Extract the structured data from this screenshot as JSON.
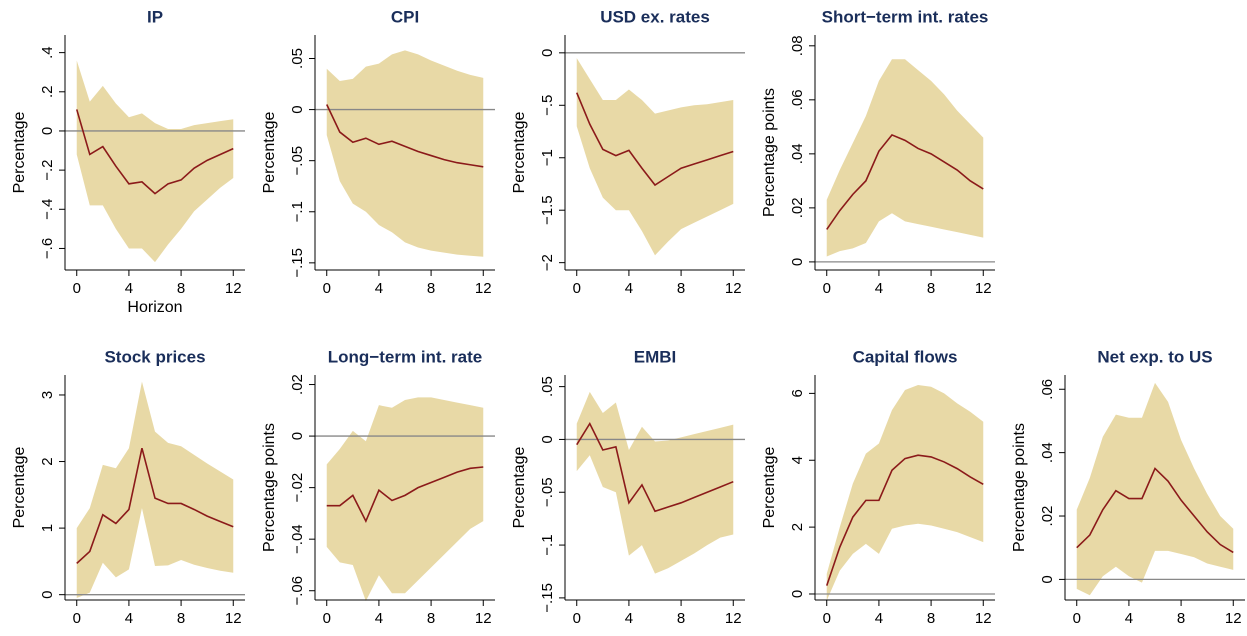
{
  "chart_data": [
    {
      "type": "line",
      "title": "IP",
      "ylabel": "Percentage",
      "xlabel": "Horizon",
      "x": [
        0,
        1,
        2,
        3,
        4,
        5,
        6,
        7,
        8,
        9,
        10,
        11,
        12
      ],
      "values": [
        0.11,
        -0.12,
        -0.08,
        -0.18,
        -0.27,
        -0.26,
        -0.32,
        -0.27,
        -0.25,
        -0.19,
        -0.15,
        -0.12,
        -0.09
      ],
      "upper": [
        0.36,
        0.15,
        0.23,
        0.14,
        0.07,
        0.09,
        0.04,
        0.01,
        0.01,
        0.03,
        0.04,
        0.05,
        0.06
      ],
      "lower": [
        -0.12,
        -0.38,
        -0.38,
        -0.5,
        -0.6,
        -0.6,
        -0.67,
        -0.58,
        -0.5,
        -0.41,
        -0.35,
        -0.29,
        -0.24
      ],
      "color": "#8b1a1a",
      "band_color": "#e8d9a6",
      "refline": 0,
      "refline_color": "#888888",
      "xlim": [
        -0.9,
        12.9
      ],
      "xticks": [
        0,
        4,
        8,
        12
      ],
      "ylim": [
        -0.71,
        0.49
      ],
      "yticks": [
        {
          "value": 0.4,
          "label": ".4"
        },
        {
          "value": 0.2,
          "label": ".2"
        },
        0,
        {
          "value": -0.2,
          "label": "−.2"
        },
        {
          "value": -0.4,
          "label": "−.4"
        },
        {
          "value": -0.6,
          "label": "−.6"
        }
      ]
    },
    {
      "type": "line",
      "title": "CPI",
      "ylabel": "Percentage",
      "x": [
        0,
        1,
        2,
        3,
        4,
        5,
        6,
        7,
        8,
        9,
        10,
        11,
        12
      ],
      "values": [
        0.005,
        -0.022,
        -0.032,
        -0.028,
        -0.034,
        -0.031,
        -0.036,
        -0.041,
        -0.045,
        -0.049,
        -0.052,
        -0.054,
        -0.056
      ],
      "upper": [
        0.04,
        0.028,
        0.03,
        0.042,
        0.045,
        0.054,
        0.058,
        0.054,
        0.048,
        0.043,
        0.038,
        0.034,
        0.031
      ],
      "lower": [
        -0.025,
        -0.07,
        -0.092,
        -0.1,
        -0.113,
        -0.12,
        -0.13,
        -0.135,
        -0.138,
        -0.14,
        -0.142,
        -0.143,
        -0.144
      ],
      "color": "#8b1a1a",
      "band_color": "#e8d9a6",
      "refline": 0,
      "refline_color": "#888888",
      "xlim": [
        -0.9,
        12.9
      ],
      "xticks": [
        0,
        4,
        8,
        12
      ],
      "ylim": [
        -0.157,
        0.073
      ],
      "yticks": [
        {
          "value": 0.05,
          "label": ".05"
        },
        0,
        {
          "value": -0.05,
          "label": "−.05"
        },
        {
          "value": -0.1,
          "label": "−.1"
        },
        {
          "value": -0.15,
          "label": "−.15"
        }
      ]
    },
    {
      "type": "line",
      "title": "USD ex. rates",
      "ylabel": "Percentage",
      "x": [
        0,
        1,
        2,
        3,
        4,
        5,
        6,
        7,
        8,
        9,
        10,
        11,
        12
      ],
      "values": [
        -0.38,
        -0.68,
        -0.92,
        -0.98,
        -0.93,
        -1.1,
        -1.26,
        -1.18,
        -1.1,
        -1.06,
        -1.02,
        -0.98,
        -0.94
      ],
      "upper": [
        -0.05,
        -0.25,
        -0.45,
        -0.45,
        -0.35,
        -0.45,
        -0.58,
        -0.55,
        -0.52,
        -0.5,
        -0.49,
        -0.47,
        -0.45
      ],
      "lower": [
        -0.7,
        -1.1,
        -1.38,
        -1.5,
        -1.5,
        -1.7,
        -1.93,
        -1.8,
        -1.68,
        -1.62,
        -1.56,
        -1.5,
        -1.44
      ],
      "color": "#8b1a1a",
      "band_color": "#e8d9a6",
      "refline": 0,
      "refline_color": "#888888",
      "xlim": [
        -0.9,
        12.9
      ],
      "xticks": [
        0,
        4,
        8,
        12
      ],
      "ylim": [
        -2.07,
        0.17
      ],
      "yticks": [
        0,
        {
          "value": -0.5,
          "label": "−.5"
        },
        {
          "value": -1,
          "label": "−1"
        },
        {
          "value": -1.5,
          "label": "−1.5"
        },
        {
          "value": -2,
          "label": "−2"
        }
      ]
    },
    {
      "type": "line",
      "title": "Short−term int. rates",
      "ylabel": "Percentage points",
      "x": [
        0,
        1,
        2,
        3,
        4,
        5,
        6,
        7,
        8,
        9,
        10,
        11,
        12
      ],
      "values": [
        0.012,
        0.019,
        0.025,
        0.03,
        0.041,
        0.047,
        0.045,
        0.042,
        0.04,
        0.037,
        0.034,
        0.03,
        0.027
      ],
      "upper": [
        0.023,
        0.034,
        0.044,
        0.054,
        0.067,
        0.075,
        0.075,
        0.071,
        0.067,
        0.062,
        0.056,
        0.051,
        0.046
      ],
      "lower": [
        0.002,
        0.004,
        0.005,
        0.007,
        0.015,
        0.018,
        0.015,
        0.014,
        0.013,
        0.012,
        0.011,
        0.01,
        0.009
      ],
      "color": "#8b1a1a",
      "band_color": "#e8d9a6",
      "refline": 0,
      "refline_color": "#888888",
      "xlim": [
        -0.9,
        12.9
      ],
      "xticks": [
        0,
        4,
        8,
        12
      ],
      "ylim": [
        -0.003,
        0.084
      ],
      "yticks": [
        0,
        {
          "value": 0.02,
          "label": ".02"
        },
        {
          "value": 0.04,
          "label": ".04"
        },
        {
          "value": 0.06,
          "label": ".06"
        },
        {
          "value": 0.08,
          "label": ".08"
        }
      ]
    },
    {
      "type": "line",
      "title": "Stock prices",
      "ylabel": "Percentage",
      "x": [
        0,
        1,
        2,
        3,
        4,
        5,
        6,
        7,
        8,
        9,
        10,
        11,
        12
      ],
      "values": [
        0.47,
        0.65,
        1.2,
        1.07,
        1.28,
        2.2,
        1.45,
        1.37,
        1.37,
        1.28,
        1.18,
        1.1,
        1.02
      ],
      "upper": [
        1.0,
        1.3,
        1.95,
        1.9,
        2.2,
        3.2,
        2.45,
        2.28,
        2.23,
        2.1,
        1.97,
        1.85,
        1.73
      ],
      "lower": [
        -0.05,
        0.03,
        0.48,
        0.26,
        0.38,
        1.3,
        0.43,
        0.44,
        0.52,
        0.45,
        0.4,
        0.36,
        0.33
      ],
      "color": "#8b1a1a",
      "band_color": "#e8d9a6",
      "refline": 0,
      "refline_color": "#888888",
      "xlim": [
        -0.9,
        12.9
      ],
      "xticks": [
        0,
        4,
        8,
        12
      ],
      "ylim": [
        -0.08,
        3.3
      ],
      "yticks": [
        0,
        1,
        2,
        3
      ]
    },
    {
      "type": "line",
      "title": "Long−term int. rate",
      "ylabel": "Percentage points",
      "x": [
        0,
        1,
        2,
        3,
        4,
        5,
        6,
        7,
        8,
        9,
        10,
        11,
        12
      ],
      "values": [
        -0.027,
        -0.027,
        -0.023,
        -0.033,
        -0.021,
        -0.025,
        -0.023,
        -0.02,
        -0.018,
        -0.016,
        -0.014,
        -0.0125,
        -0.012
      ],
      "upper": [
        -0.011,
        -0.005,
        0.002,
        -0.002,
        0.012,
        0.011,
        0.014,
        0.015,
        0.015,
        0.014,
        0.013,
        0.012,
        0.011
      ],
      "lower": [
        -0.043,
        -0.049,
        -0.05,
        -0.064,
        -0.054,
        -0.061,
        -0.061,
        -0.056,
        -0.051,
        -0.046,
        -0.041,
        -0.036,
        -0.033
      ],
      "color": "#8b1a1a",
      "band_color": "#e8d9a6",
      "refline": 0,
      "refline_color": "#888888",
      "xlim": [
        -0.9,
        12.9
      ],
      "xticks": [
        0,
        4,
        8,
        12
      ],
      "ylim": [
        -0.0636,
        0.0237
      ],
      "yticks": [
        {
          "value": 0.02,
          "label": ".02"
        },
        0,
        {
          "value": -0.02,
          "label": "−.02"
        },
        {
          "value": -0.04,
          "label": "−.04"
        },
        {
          "value": -0.06,
          "label": "−.06"
        }
      ]
    },
    {
      "type": "line",
      "title": "EMBI",
      "ylabel": "Percentage",
      "x": [
        0,
        1,
        2,
        3,
        4,
        5,
        6,
        7,
        8,
        9,
        10,
        11,
        12
      ],
      "values": [
        -0.005,
        0.015,
        -0.01,
        -0.007,
        -0.06,
        -0.043,
        -0.068,
        -0.064,
        -0.06,
        -0.055,
        -0.05,
        -0.045,
        -0.04
      ],
      "upper": [
        0.015,
        0.045,
        0.025,
        0.035,
        -0.01,
        0.012,
        -0.002,
        -0.001,
        0.002,
        0.005,
        0.008,
        0.011,
        0.014
      ],
      "lower": [
        -0.03,
        -0.015,
        -0.045,
        -0.05,
        -0.11,
        -0.1,
        -0.127,
        -0.122,
        -0.115,
        -0.108,
        -0.1,
        -0.093,
        -0.09
      ],
      "color": "#8b1a1a",
      "band_color": "#e8d9a6",
      "refline": 0,
      "refline_color": "#888888",
      "xlim": [
        -0.9,
        12.9
      ],
      "xticks": [
        0,
        4,
        8,
        12
      ],
      "ylim": [
        -0.152,
        0.061
      ],
      "yticks": [
        {
          "value": 0.05,
          "label": ".05"
        },
        0,
        {
          "value": -0.05,
          "label": "−.05"
        },
        {
          "value": -0.1,
          "label": "−.1"
        },
        {
          "value": -0.15,
          "label": "−.15"
        }
      ]
    },
    {
      "type": "line",
      "title": "Capital flows",
      "ylabel": "Percentage",
      "x": [
        0,
        1,
        2,
        3,
        4,
        5,
        6,
        7,
        8,
        9,
        10,
        11,
        12
      ],
      "values": [
        0.25,
        1.4,
        2.3,
        2.8,
        2.8,
        3.7,
        4.05,
        4.15,
        4.1,
        3.95,
        3.75,
        3.5,
        3.28
      ],
      "upper": [
        0.6,
        2.0,
        3.3,
        4.2,
        4.5,
        5.5,
        6.1,
        6.25,
        6.2,
        6.0,
        5.7,
        5.45,
        5.15
      ],
      "lower": [
        -0.2,
        0.7,
        1.2,
        1.5,
        1.2,
        1.95,
        2.05,
        2.1,
        2.05,
        1.95,
        1.85,
        1.7,
        1.55
      ],
      "color": "#8b1a1a",
      "band_color": "#e8d9a6",
      "refline": 0,
      "refline_color": "#888888",
      "xlim": [
        -0.9,
        12.9
      ],
      "xticks": [
        0,
        4,
        8,
        12
      ],
      "ylim": [
        -0.18,
        6.55
      ],
      "yticks": [
        0,
        2,
        4,
        6
      ]
    },
    {
      "type": "line",
      "title": "Net exp. to US",
      "ylabel": "Percentage points",
      "x": [
        0,
        1,
        2,
        3,
        4,
        5,
        6,
        7,
        8,
        9,
        10,
        11,
        12
      ],
      "values": [
        0.01,
        0.014,
        0.022,
        0.028,
        0.0255,
        0.0255,
        0.035,
        0.031,
        0.025,
        0.02,
        0.015,
        0.011,
        0.0085
      ],
      "upper": [
        0.022,
        0.032,
        0.045,
        0.052,
        0.051,
        0.051,
        0.062,
        0.056,
        0.044,
        0.035,
        0.027,
        0.02,
        0.016
      ],
      "lower": [
        -0.003,
        -0.005,
        0.001,
        0.004,
        0.001,
        -0.001,
        0.009,
        0.009,
        0.008,
        0.007,
        0.005,
        0.004,
        0.003
      ],
      "color": "#8b1a1a",
      "band_color": "#e8d9a6",
      "refline": 0,
      "refline_color": "#888888",
      "xlim": [
        -0.9,
        12.9
      ],
      "xticks": [
        0,
        4,
        8,
        12
      ],
      "ylim": [
        -0.0065,
        0.0645
      ],
      "yticks": [
        0,
        {
          "value": 0.02,
          "label": ".02"
        },
        {
          "value": 0.04,
          "label": ".04"
        },
        {
          "value": 0.06,
          "label": ".06"
        }
      ]
    }
  ]
}
